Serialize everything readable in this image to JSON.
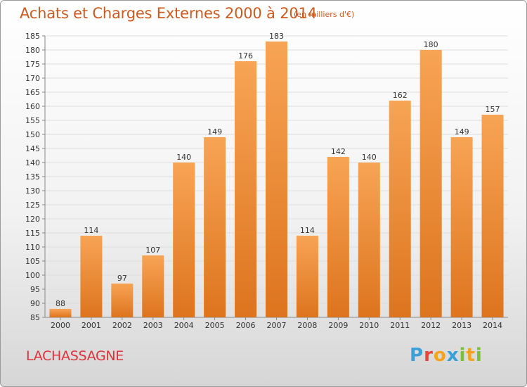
{
  "title": "Achats et Charges Externes 2000 à 2014",
  "subtitle": "(en milliers d'€)",
  "commune": "LACHASSAGNE",
  "logo": {
    "letters": [
      "P",
      "r",
      "o",
      "x",
      "i",
      "t",
      "i"
    ],
    "colors": [
      "#3aa0d8",
      "#e8453c",
      "#f6a21d",
      "#3aa0d8",
      "#7bbf3a",
      "#f6a21d",
      "#7bbf3a"
    ]
  },
  "colors": {
    "accent": "#cc5a1e",
    "bar_top": "#f7a455",
    "bar_bottom": "#dd741e",
    "commune": "#e0303a"
  },
  "chart_data": {
    "type": "bar",
    "categories": [
      "2000",
      "2001",
      "2002",
      "2003",
      "2004",
      "2005",
      "2006",
      "2007",
      "2008",
      "2009",
      "2010",
      "2011",
      "2012",
      "2013",
      "2014"
    ],
    "values": [
      88,
      114,
      97,
      107,
      140,
      149,
      176,
      183,
      114,
      142,
      140,
      162,
      180,
      149,
      157
    ],
    "ylim": [
      85,
      185
    ],
    "yticks": [
      85,
      90,
      95,
      100,
      105,
      110,
      115,
      120,
      125,
      130,
      135,
      140,
      145,
      150,
      155,
      160,
      165,
      170,
      175,
      180,
      185
    ],
    "grid": true,
    "data_labels": true
  }
}
